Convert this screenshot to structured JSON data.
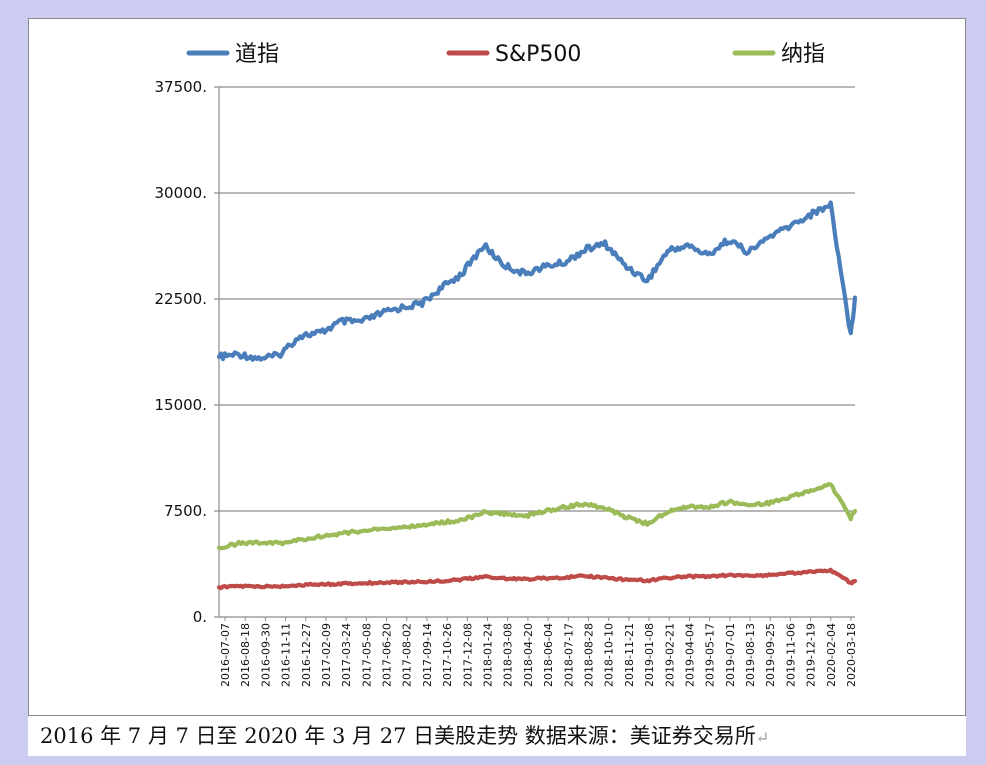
{
  "chart_data": {
    "type": "line",
    "title": "",
    "xlabel": "",
    "ylabel": "",
    "ylim": [
      0,
      37500
    ],
    "y_ticks": [
      "0.",
      "7500.",
      "15000.",
      "22500.",
      "30000.",
      "37500."
    ],
    "y_tick_values": [
      0,
      7500,
      15000,
      22500,
      30000,
      37500
    ],
    "grid": "horizontal",
    "legend_position": "top",
    "x_tick_labels": [
      "2016-07-07",
      "2016-08-18",
      "2016-09-30",
      "2016-11-11",
      "2016-12-27",
      "2017-02-09",
      "2017-03-24",
      "2017-05-08",
      "2017-06-20",
      "2017-08-02",
      "2017-09-14",
      "2017-10-26",
      "2017-12-08",
      "2018-01-24",
      "2018-03-08",
      "2018-04-20",
      "2018-06-04",
      "2018-07-17",
      "2018-08-28",
      "2018-10-10",
      "2018-11-21",
      "2019-01-08",
      "2019-02-21",
      "2019-04-04",
      "2019-05-17",
      "2019-07-01",
      "2019-08-13",
      "2019-09-25",
      "2019-11-06",
      "2019-12-19",
      "2020-02-04",
      "2020-03-18"
    ],
    "series": [
      {
        "name": "道指",
        "color": "#4a7ebb",
        "points": [
          [
            "2016-07-07",
            18400
          ],
          [
            "2016-08-18",
            18600
          ],
          [
            "2016-09-30",
            18300
          ],
          [
            "2016-11-11",
            18500
          ],
          [
            "2016-12-27",
            19900
          ],
          [
            "2017-02-09",
            20100
          ],
          [
            "2017-03-24",
            20900
          ],
          [
            "2017-05-08",
            20900
          ],
          [
            "2017-06-20",
            21500
          ],
          [
            "2017-08-02",
            21900
          ],
          [
            "2017-09-14",
            22200
          ],
          [
            "2017-10-26",
            23300
          ],
          [
            "2017-12-08",
            24300
          ],
          [
            "2018-01-24",
            26300
          ],
          [
            "2018-03-08",
            24900
          ],
          [
            "2018-04-20",
            24300
          ],
          [
            "2018-06-04",
            24800
          ],
          [
            "2018-07-17",
            25100
          ],
          [
            "2018-08-28",
            26000
          ],
          [
            "2018-10-10",
            26400
          ],
          [
            "2018-11-21",
            24900
          ],
          [
            "2019-01-08",
            23800
          ],
          [
            "2019-02-21",
            25900
          ],
          [
            "2019-04-04",
            26300
          ],
          [
            "2019-05-17",
            25600
          ],
          [
            "2019-07-01",
            26700
          ],
          [
            "2019-08-13",
            25800
          ],
          [
            "2019-09-25",
            26900
          ],
          [
            "2019-11-06",
            27600
          ],
          [
            "2019-12-19",
            28400
          ],
          [
            "2020-02-04",
            29200
          ],
          [
            "2020-03-18",
            19900
          ],
          [
            "2020-03-27",
            22600
          ]
        ]
      },
      {
        "name": "S&P500",
        "color": "#be4b48",
        "points": [
          [
            "2016-07-07",
            2100
          ],
          [
            "2016-08-18",
            2180
          ],
          [
            "2016-09-30",
            2150
          ],
          [
            "2016-11-11",
            2160
          ],
          [
            "2016-12-27",
            2260
          ],
          [
            "2017-02-09",
            2300
          ],
          [
            "2017-03-24",
            2350
          ],
          [
            "2017-05-08",
            2390
          ],
          [
            "2017-06-20",
            2440
          ],
          [
            "2017-08-02",
            2470
          ],
          [
            "2017-09-14",
            2500
          ],
          [
            "2017-10-26",
            2560
          ],
          [
            "2017-12-08",
            2650
          ],
          [
            "2018-01-24",
            2840
          ],
          [
            "2018-03-08",
            2740
          ],
          [
            "2018-04-20",
            2670
          ],
          [
            "2018-06-04",
            2740
          ],
          [
            "2018-07-17",
            2810
          ],
          [
            "2018-08-28",
            2900
          ],
          [
            "2018-10-10",
            2780
          ],
          [
            "2018-11-21",
            2650
          ],
          [
            "2019-01-08",
            2570
          ],
          [
            "2019-02-21",
            2770
          ],
          [
            "2019-04-04",
            2880
          ],
          [
            "2019-05-17",
            2860
          ],
          [
            "2019-07-01",
            2960
          ],
          [
            "2019-08-13",
            2900
          ],
          [
            "2019-09-25",
            2980
          ],
          [
            "2019-11-06",
            3080
          ],
          [
            "2019-12-19",
            3200
          ],
          [
            "2020-02-04",
            3300
          ],
          [
            "2020-03-18",
            2400
          ],
          [
            "2020-03-27",
            2550
          ]
        ]
      },
      {
        "name": "纳指",
        "color": "#9bbb59",
        "points": [
          [
            "2016-07-07",
            4900
          ],
          [
            "2016-08-18",
            5200
          ],
          [
            "2016-09-30",
            5300
          ],
          [
            "2016-11-11",
            5200
          ],
          [
            "2016-12-27",
            5450
          ],
          [
            "2017-02-09",
            5700
          ],
          [
            "2017-03-24",
            5900
          ],
          [
            "2017-05-08",
            6100
          ],
          [
            "2017-06-20",
            6200
          ],
          [
            "2017-08-02",
            6350
          ],
          [
            "2017-09-14",
            6450
          ],
          [
            "2017-10-26",
            6700
          ],
          [
            "2017-12-08",
            6850
          ],
          [
            "2018-01-24",
            7400
          ],
          [
            "2018-03-08",
            7300
          ],
          [
            "2018-04-20",
            7100
          ],
          [
            "2018-06-04",
            7500
          ],
          [
            "2018-07-17",
            7800
          ],
          [
            "2018-08-28",
            8000
          ],
          [
            "2018-10-10",
            7700
          ],
          [
            "2018-11-21",
            7100
          ],
          [
            "2019-01-08",
            6600
          ],
          [
            "2019-02-21",
            7450
          ],
          [
            "2019-04-04",
            7850
          ],
          [
            "2019-05-17",
            7750
          ],
          [
            "2019-07-01",
            8150
          ],
          [
            "2019-08-13",
            7900
          ],
          [
            "2019-09-25",
            8050
          ],
          [
            "2019-11-06",
            8450
          ],
          [
            "2019-12-19",
            8900
          ],
          [
            "2020-02-04",
            9400
          ],
          [
            "2020-03-18",
            7000
          ],
          [
            "2020-03-27",
            7500
          ]
        ]
      }
    ]
  },
  "caption": {
    "text": "2016 年 7 月 7 日至 2020 年 3 月 27 日美股走势 数据来源：美证券交易所",
    "return_mark": "↵"
  }
}
